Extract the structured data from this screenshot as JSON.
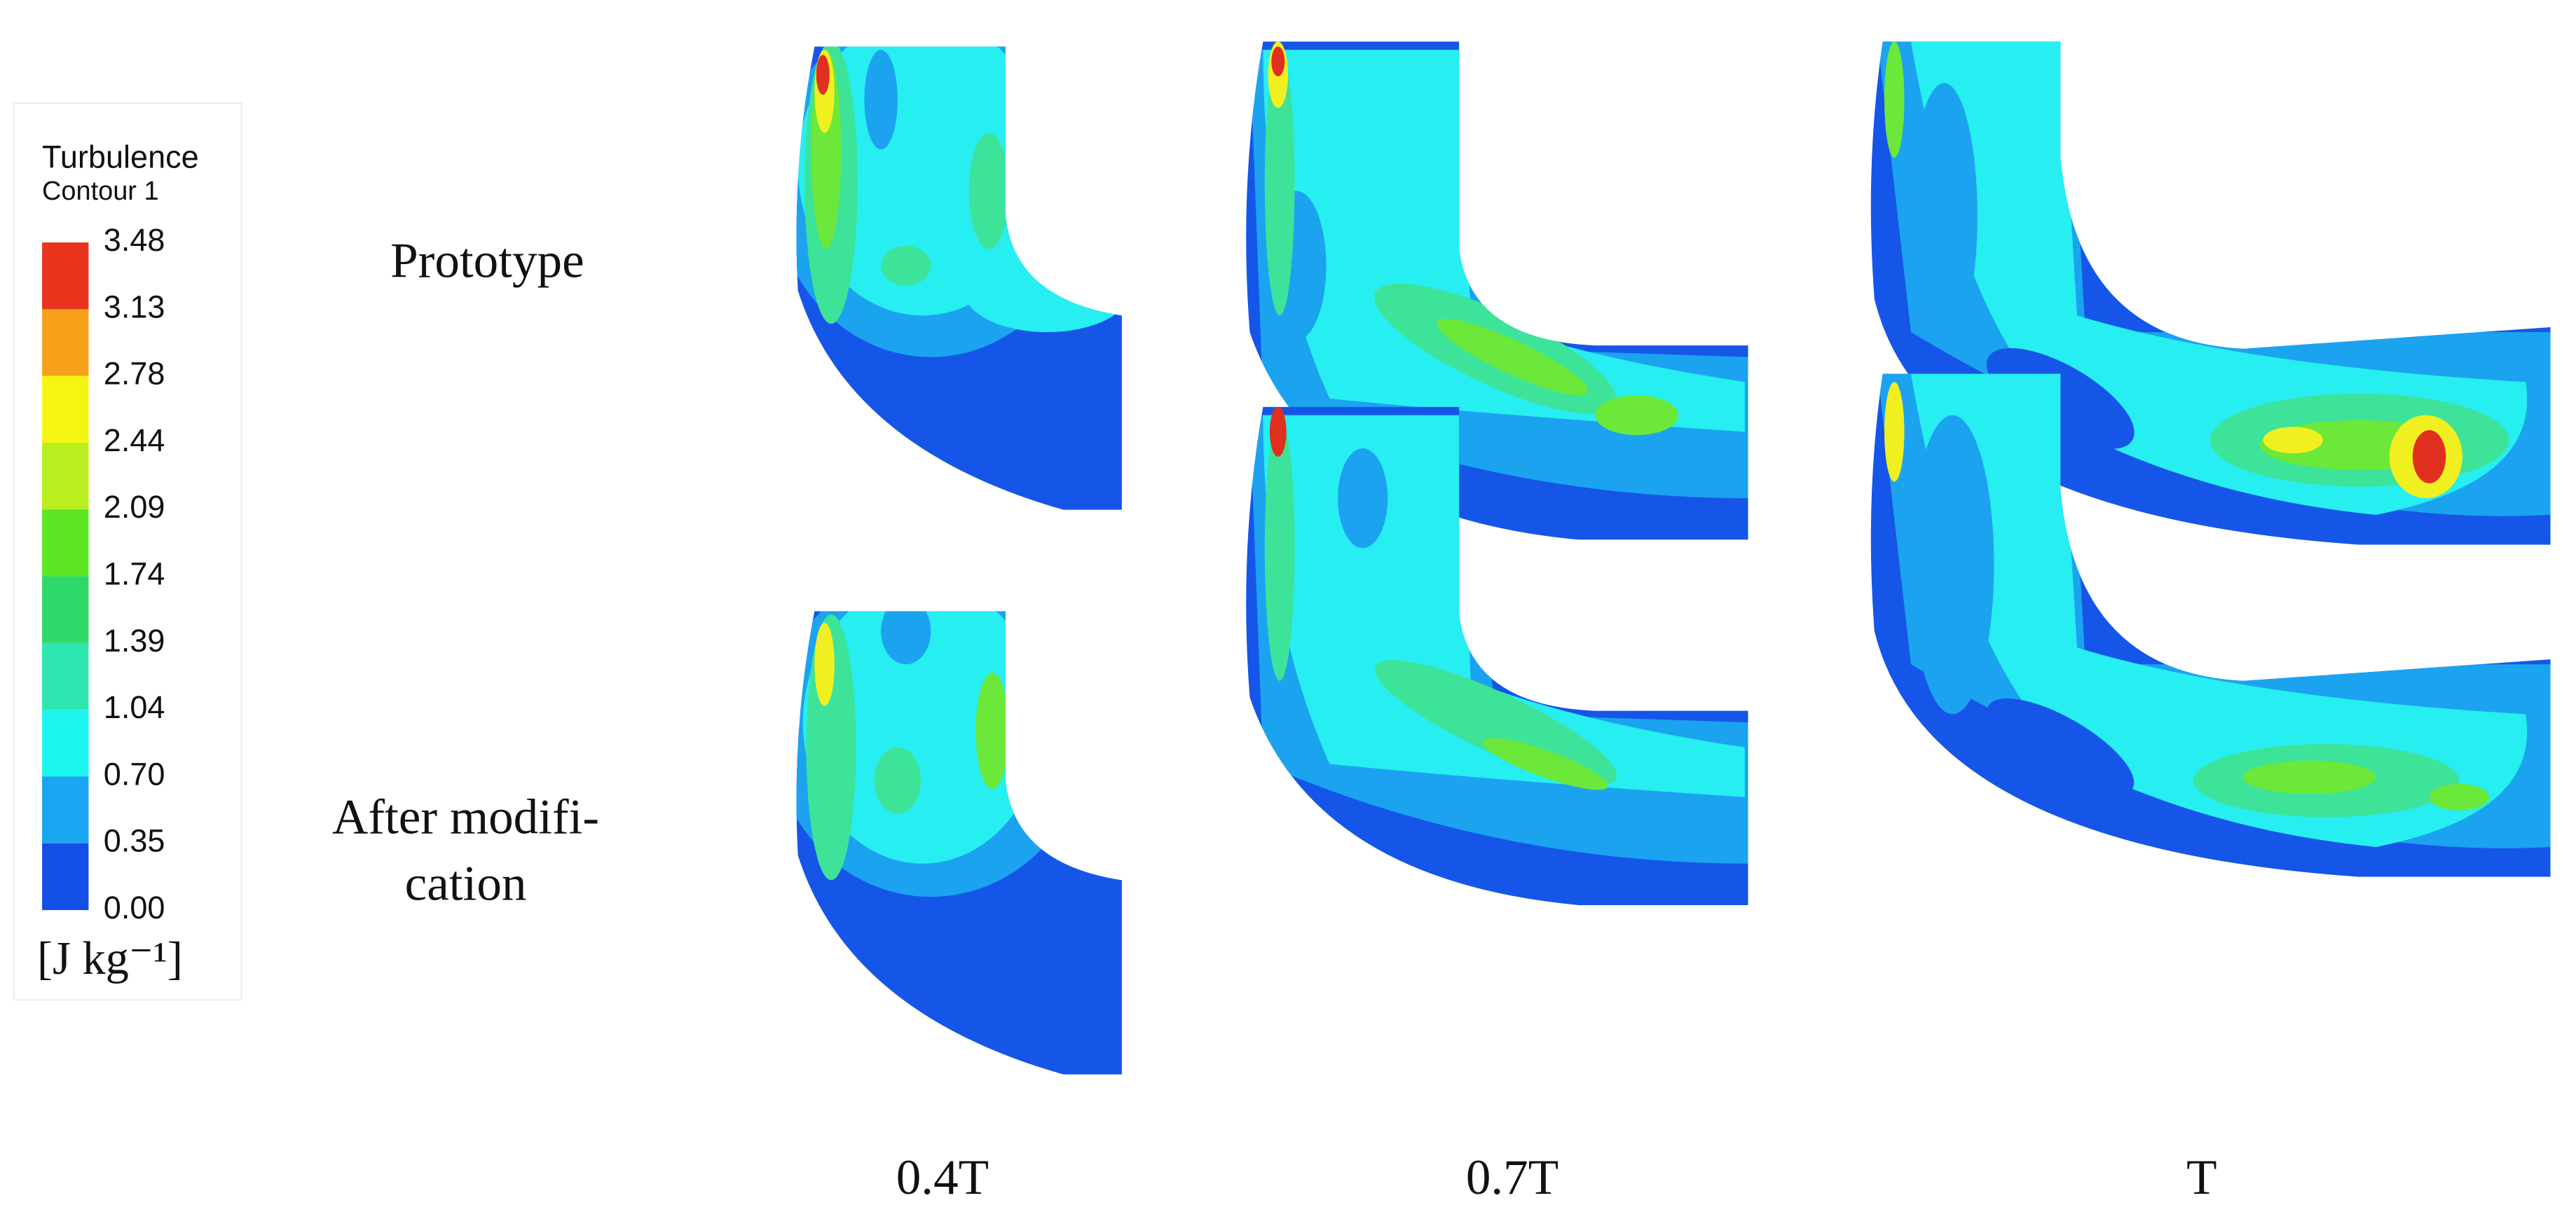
{
  "legend": {
    "title": "Turbulence",
    "subtitle": "Contour 1",
    "levels": [
      "3.48",
      "3.13",
      "2.78",
      "2.44",
      "2.09",
      "1.74",
      "1.39",
      "1.04",
      "0.70",
      "0.35",
      "0.00"
    ],
    "unit": "[J kg⁻¹]"
  },
  "rows": [
    [
      "Prototype"
    ],
    [
      "After modifi-",
      "cation"
    ]
  ],
  "columns": [
    "0.4T",
    "0.7T",
    "T"
  ]
}
